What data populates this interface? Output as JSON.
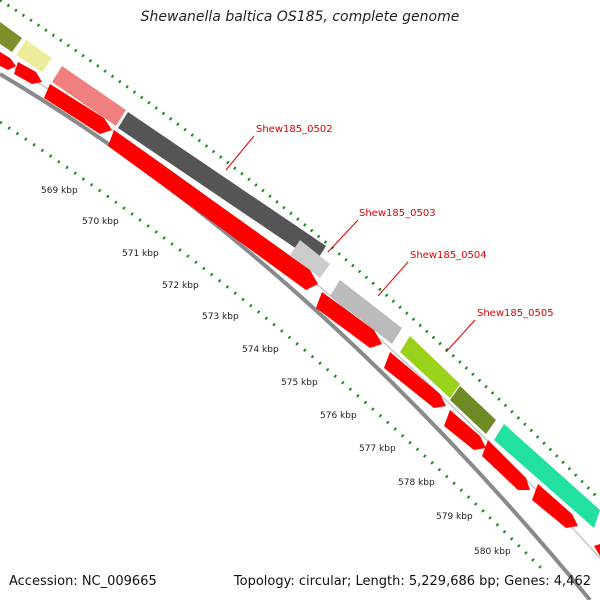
{
  "title": "Shewanella baltica OS185, complete genome",
  "footer": {
    "accession": "Accession: NC_009665",
    "summary": "Topology: circular; Length: 5,229,686 bp; Genes: 4,462"
  },
  "colors": {
    "cds_red": "#ff0000",
    "backbone": "#8a8a8a",
    "tick_green": "#1a8a1a",
    "label_red": "#e00000"
  },
  "ticks": [
    {
      "label": "569 kbp"
    },
    {
      "label": "570 kbp"
    },
    {
      "label": "571 kbp"
    },
    {
      "label": "572 kbp"
    },
    {
      "label": "573 kbp"
    },
    {
      "label": "574 kbp"
    },
    {
      "label": "575 kbp"
    },
    {
      "label": "576 kbp"
    },
    {
      "label": "577 kbp"
    },
    {
      "label": "578 kbp"
    },
    {
      "label": "579 kbp"
    },
    {
      "label": "580 kbp"
    }
  ],
  "genes": [
    {
      "name": "Shew185_0502"
    },
    {
      "name": "Shew185_0503"
    },
    {
      "name": "Shew185_0504"
    },
    {
      "name": "Shew185_0505"
    }
  ]
}
